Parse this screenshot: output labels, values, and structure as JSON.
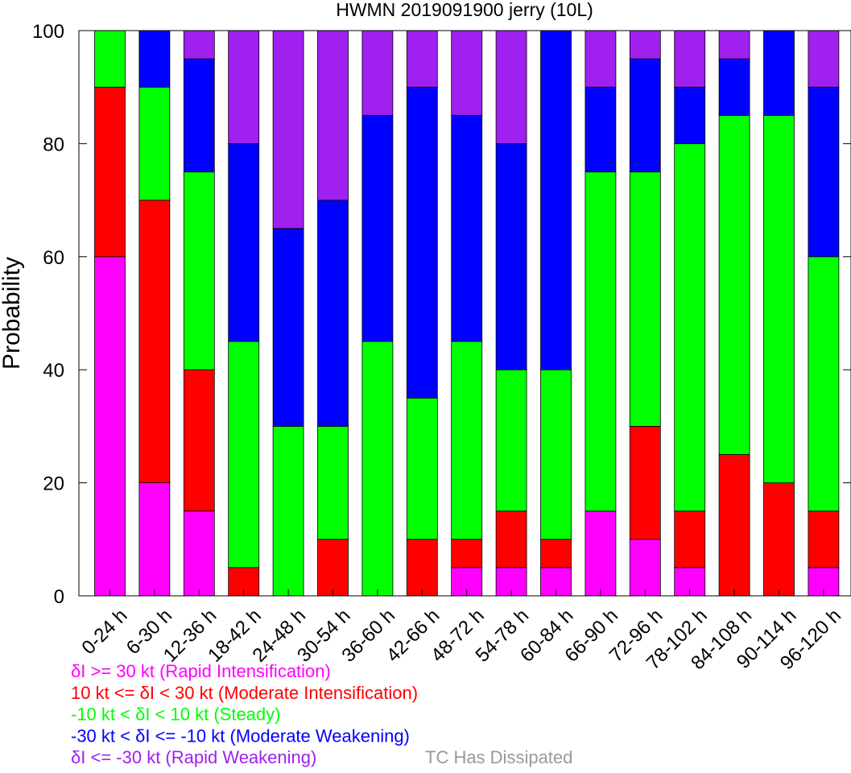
{
  "chart_data": {
    "type": "bar",
    "stacked": true,
    "title": "HWMN 2019091900 jerry (10L)",
    "xlabel": "",
    "ylabel": "Probability",
    "ylim": [
      0,
      100
    ],
    "yticks": [
      0,
      20,
      40,
      60,
      80,
      100
    ],
    "grid": false,
    "categories": [
      "0-24 h",
      "6-30 h",
      "12-36 h",
      "18-42 h",
      "24-48 h",
      "30-54 h",
      "36-60 h",
      "42-66 h",
      "48-72 h",
      "54-78 h",
      "60-84 h",
      "66-90 h",
      "72-96 h",
      "78-102 h",
      "84-108 h",
      "90-114 h",
      "96-120 h"
    ],
    "series": [
      {
        "name": "δI >= 30 kt (Rapid Intensification)",
        "color": "#ff00ff",
        "values": [
          60,
          20,
          15,
          0,
          0,
          0,
          0,
          0,
          5,
          5,
          5,
          15,
          10,
          5,
          0,
          0,
          5
        ]
      },
      {
        "name": "10 kt <= δI < 30 kt (Moderate Intensification)",
        "color": "#ff0000",
        "values": [
          30,
          50,
          25,
          5,
          0,
          10,
          0,
          10,
          5,
          10,
          5,
          0,
          20,
          10,
          25,
          20,
          10
        ]
      },
      {
        "name": "-10 kt < δI < 10 kt (Steady)",
        "color": "#00ff00",
        "values": [
          10,
          20,
          35,
          40,
          30,
          20,
          45,
          25,
          35,
          25,
          30,
          60,
          45,
          65,
          60,
          65,
          45
        ]
      },
      {
        "name": "-30 kt < δI <= -10 kt (Moderate Weakening)",
        "color": "#0000ff",
        "values": [
          0,
          10,
          20,
          35,
          35,
          40,
          40,
          55,
          40,
          40,
          60,
          15,
          20,
          10,
          10,
          15,
          30
        ]
      },
      {
        "name": "δI <= -30 kt (Rapid Weakening)",
        "color": "#a020f0",
        "values": [
          0,
          0,
          5,
          20,
          35,
          30,
          15,
          10,
          15,
          20,
          0,
          10,
          5,
          10,
          5,
          0,
          10
        ]
      }
    ],
    "extra_legend": {
      "name": "TC Has Dissipated",
      "color": "#999999"
    },
    "legend_placement": "bottom-left"
  }
}
